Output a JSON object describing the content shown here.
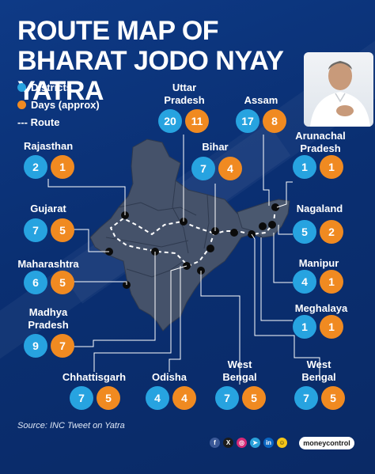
{
  "title": "ROUTE MAP OF BHARAT JODO NYAY YATRA",
  "legend": {
    "districts": "Districts",
    "days": "Days (approx)",
    "route": "--- Route"
  },
  "colors": {
    "background": "#0a2a66",
    "districts": "#27a3e0",
    "days": "#f08a21",
    "map_fill": "#45526a",
    "route": "#ffffff"
  },
  "states": [
    {
      "name": "Rajasthan",
      "districts": "2",
      "days": "1"
    },
    {
      "name": "Gujarat",
      "districts": "7",
      "days": "5"
    },
    {
      "name": "Maharashtra",
      "districts": "6",
      "days": "5"
    },
    {
      "name": "Madhya Pradesh",
      "districts": "9",
      "days": "7"
    },
    {
      "name": "Chhattisgarh",
      "districts": "7",
      "days": "5"
    },
    {
      "name": "Odisha",
      "districts": "4",
      "days": "4"
    },
    {
      "name": "West Bengal",
      "districts": "7",
      "days": "5"
    },
    {
      "name": "West Bengal",
      "districts": "7",
      "days": "5"
    },
    {
      "name": "Meghalaya",
      "districts": "1",
      "days": "1"
    },
    {
      "name": "Manipur",
      "districts": "4",
      "days": "1"
    },
    {
      "name": "Nagaland",
      "districts": "5",
      "days": "2"
    },
    {
      "name": "Arunachal Pradesh",
      "districts": "1",
      "days": "1"
    },
    {
      "name": "Assam",
      "districts": "17",
      "days": "8"
    },
    {
      "name": "Uttar Pradesh",
      "districts": "20",
      "days": "11"
    },
    {
      "name": "Bihar",
      "districts": "7",
      "days": "4"
    }
  ],
  "source": "Source: INC Tweet on Yatra",
  "social_icons": [
    "facebook-icon",
    "x-icon",
    "instagram-icon",
    "telegram-icon",
    "linkedin-icon",
    "koo-icon"
  ],
  "brand": "moneycontrol"
}
